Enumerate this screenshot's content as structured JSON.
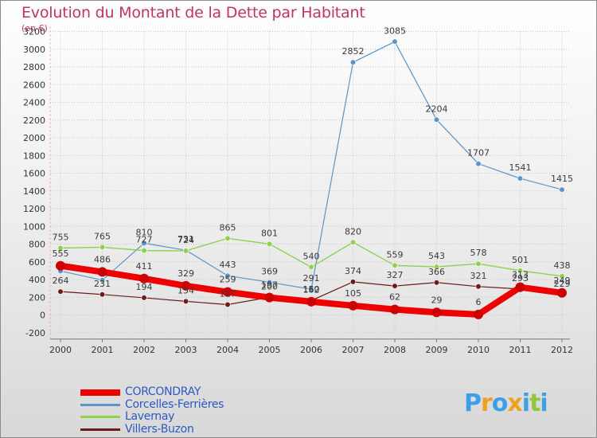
{
  "chart_data": {
    "type": "line",
    "title": "Evolution du Montant de la Dette par Habitant",
    "subtitle": "(en €)",
    "xlabel": "",
    "ylabel": "",
    "categories": [
      "2000",
      "2001",
      "2002",
      "2003",
      "2004",
      "2005",
      "2006",
      "2007",
      "2008",
      "2009",
      "2010",
      "2011",
      "2012"
    ],
    "ylim": [
      -200,
      3200
    ],
    "yticks": [
      -200,
      0,
      200,
      400,
      600,
      800,
      1000,
      1200,
      1400,
      1600,
      1800,
      2000,
      2200,
      2400,
      2600,
      2800,
      3000,
      3200
    ],
    "grid": "horizontal dotted",
    "legend_position": "bottom-left",
    "series": [
      {
        "name": "CORCONDRAY",
        "color": "#ee0000",
        "values": [
          555,
          486,
          411,
          329,
          259,
          197,
          150,
          105,
          62,
          29,
          6,
          313,
          249
        ],
        "labels": [
          "555",
          "486",
          "411",
          "329",
          "259",
          "197",
          "150",
          "105",
          "62",
          "29",
          "6",
          "313",
          "249"
        ]
      },
      {
        "name": "Corcelles-Ferrières",
        "color": "#5b94c8",
        "values": [
          496,
          393,
          810,
          731,
          443,
          369,
          291,
          2852,
          3085,
          2204,
          1707,
          1541,
          1415
        ],
        "labels": [
          "",
          "",
          "810",
          "731",
          "443",
          "369",
          "291",
          "2852",
          "3085",
          "2204",
          "1707",
          "1541",
          "1415"
        ]
      },
      {
        "name": "Lavernay",
        "color": "#8fd14f",
        "values": [
          755,
          765,
          727,
          724,
          865,
          801,
          540,
          820,
          559,
          543,
          578,
          501,
          438
        ],
        "labels": [
          "755",
          "765",
          "727",
          "724",
          "865",
          "801",
          "540",
          "820",
          "559",
          "543",
          "578",
          "501",
          "438"
        ]
      },
      {
        "name": "Villers-Buzon",
        "color": "#6b1b1b",
        "values": [
          264,
          231,
          194,
          154,
          117,
          200,
          162,
          374,
          327,
          366,
          321,
          293,
          229
        ],
        "labels": [
          "264",
          "231",
          "194",
          "154",
          "117",
          "200",
          "162",
          "374",
          "327",
          "366",
          "321",
          "293",
          "229"
        ]
      }
    ]
  },
  "logo": {
    "letters": [
      "P",
      "r",
      "o",
      "x",
      "i",
      "t",
      "i"
    ],
    "colors": [
      "#3da0e6",
      "#f0a020",
      "#3da0e6",
      "#f0a020",
      "#3da0e6",
      "#8fc840",
      "#3da0e6"
    ]
  }
}
